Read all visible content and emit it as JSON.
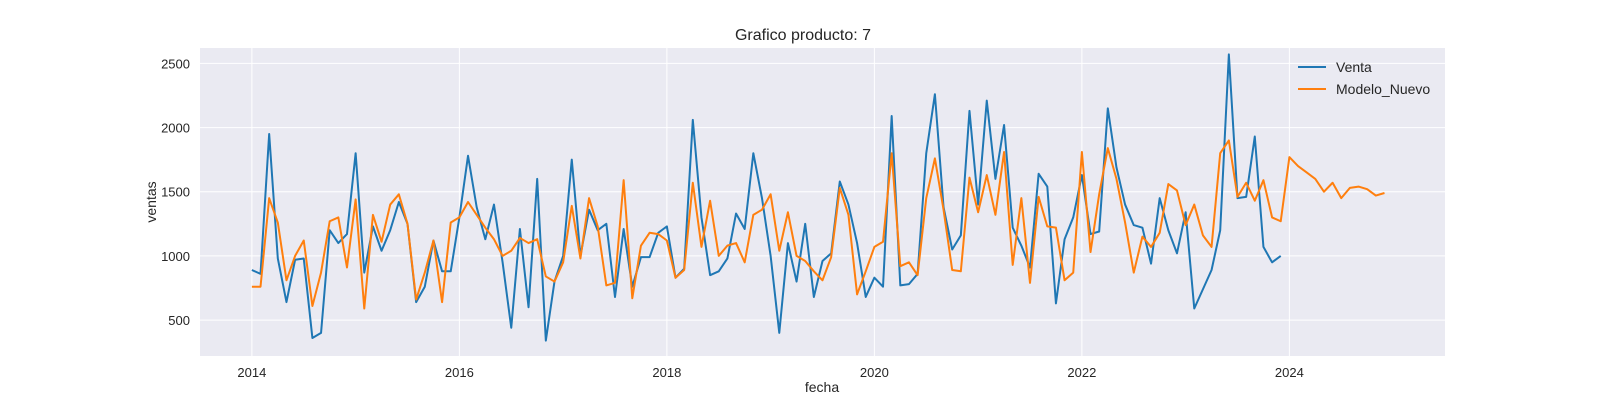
{
  "chart_data": {
    "type": "line",
    "title": "Grafico producto: 7",
    "xlabel": "fecha",
    "ylabel": "ventas",
    "x_start": "2014-01",
    "xlim": [
      2013.5,
      2025.5
    ],
    "ylim": [
      220,
      2620
    ],
    "x_ticks": [
      2014,
      2016,
      2018,
      2020,
      2022,
      2024
    ],
    "x_tick_labels": [
      "2014",
      "2016",
      "2018",
      "2020",
      "2022",
      "2024"
    ],
    "y_ticks": [
      500,
      1000,
      1500,
      2000,
      2500
    ],
    "y_tick_labels": [
      "500",
      "1000",
      "1500",
      "2000",
      "2500"
    ],
    "grid": true,
    "legend_position": "top-right",
    "series": [
      {
        "name": "Venta",
        "color": "#1f77b4",
        "values": [
          890,
          860,
          1950,
          980,
          640,
          970,
          980,
          360,
          400,
          1200,
          1100,
          1170,
          1800,
          870,
          1230,
          1040,
          1200,
          1420,
          1250,
          640,
          760,
          1120,
          880,
          880,
          1300,
          1780,
          1380,
          1130,
          1400,
          950,
          440,
          1210,
          600,
          1600,
          340,
          800,
          1000,
          1750,
          1000,
          1360,
          1200,
          1250,
          680,
          1210,
          760,
          990,
          990,
          1180,
          1230,
          830,
          900,
          2060,
          1300,
          850,
          880,
          980,
          1330,
          1210,
          1800,
          1450,
          1000,
          400,
          1100,
          800,
          1250,
          680,
          960,
          1020,
          1580,
          1400,
          1100,
          680,
          830,
          760,
          2090,
          770,
          780,
          860,
          1800,
          2260,
          1380,
          1050,
          1160,
          2130,
          1400,
          2210,
          1600,
          2020,
          1220,
          1080,
          910,
          1640,
          1540,
          630,
          1130,
          1300,
          1630,
          1170,
          1190,
          2150,
          1690,
          1400,
          1240,
          1220,
          940,
          1450,
          1200,
          1020,
          1340,
          590,
          740,
          890,
          1200,
          2570,
          1450,
          1460,
          1930,
          1070,
          950,
          1000
        ]
      },
      {
        "name": "Modelo_Nuevo",
        "color": "#ff7f0e",
        "values": [
          760,
          760,
          1450,
          1260,
          810,
          1000,
          1120,
          610,
          870,
          1270,
          1300,
          910,
          1440,
          590,
          1320,
          1110,
          1400,
          1480,
          1250,
          660,
          870,
          1120,
          640,
          1260,
          1300,
          1420,
          1320,
          1220,
          1130,
          1000,
          1040,
          1140,
          1100,
          1130,
          840,
          800,
          950,
          1390,
          980,
          1450,
          1230,
          770,
          790,
          1590,
          670,
          1080,
          1180,
          1170,
          1120,
          830,
          890,
          1570,
          1070,
          1430,
          1000,
          1080,
          1100,
          950,
          1320,
          1360,
          1480,
          1040,
          1340,
          1000,
          960,
          880,
          810,
          990,
          1530,
          1320,
          700,
          880,
          1070,
          1110,
          1800,
          920,
          950,
          850,
          1450,
          1760,
          1360,
          890,
          880,
          1610,
          1340,
          1630,
          1320,
          1810,
          930,
          1450,
          790,
          1460,
          1230,
          1220,
          810,
          870,
          1810,
          1030,
          1480,
          1840,
          1600,
          1260,
          870,
          1150,
          1070,
          1180,
          1560,
          1510,
          1240,
          1400,
          1160,
          1070,
          1800,
          1900,
          1460,
          1570,
          1430,
          1590,
          1300,
          1270,
          1770,
          1700,
          1650,
          1600,
          1500,
          1570,
          1450,
          1530,
          1540,
          1520,
          1470,
          1490
        ]
      }
    ]
  }
}
